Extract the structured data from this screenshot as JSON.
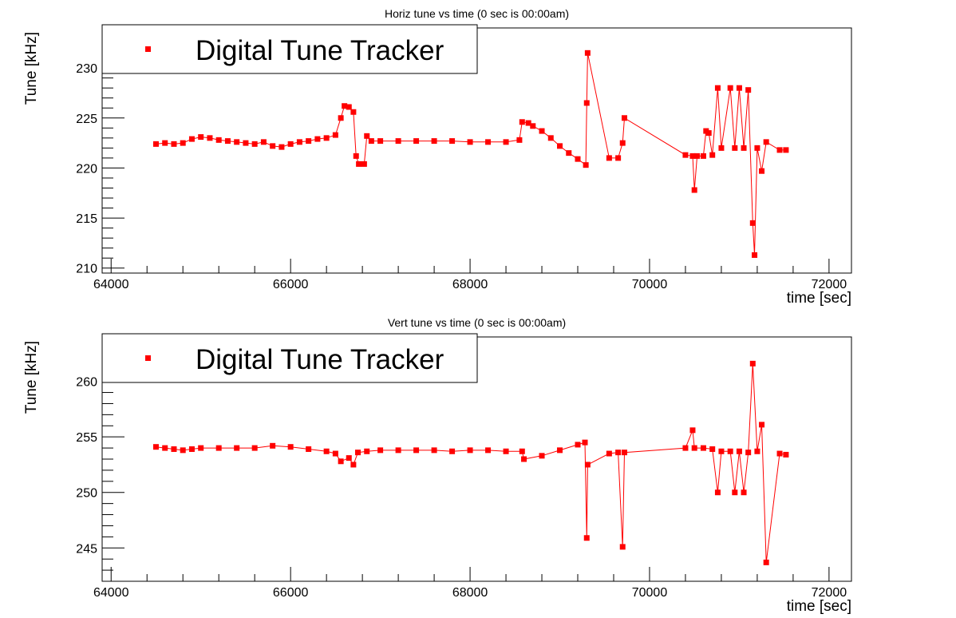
{
  "chart_data": [
    {
      "type": "scatter",
      "title": "Horiz tune vs time (0 sec is 00:00am)",
      "xlabel": "time [sec]",
      "ylabel": "Tune [kHz]",
      "xlim": [
        63900,
        72250
      ],
      "ylim": [
        209.5,
        234
      ],
      "xticks": [
        64000,
        66000,
        68000,
        70000,
        72000
      ],
      "yticks": [
        210,
        215,
        220,
        225,
        230
      ],
      "legend": {
        "label": "Digital Tune Tracker",
        "position": "top-left"
      },
      "series": [
        {
          "name": "Digital Tune Tracker",
          "color": "#ff0000",
          "points": [
            [
              64500,
              222.4
            ],
            [
              64600,
              222.5
            ],
            [
              64700,
              222.4
            ],
            [
              64800,
              222.5
            ],
            [
              64900,
              222.9
            ],
            [
              65000,
              223.1
            ],
            [
              65100,
              223.0
            ],
            [
              65200,
              222.8
            ],
            [
              65300,
              222.7
            ],
            [
              65400,
              222.6
            ],
            [
              65500,
              222.5
            ],
            [
              65600,
              222.4
            ],
            [
              65700,
              222.6
            ],
            [
              65800,
              222.2
            ],
            [
              65900,
              222.1
            ],
            [
              66000,
              222.4
            ],
            [
              66100,
              222.6
            ],
            [
              66200,
              222.7
            ],
            [
              66300,
              222.9
            ],
            [
              66400,
              223.0
            ],
            [
              66500,
              223.3
            ],
            [
              66560,
              225.0
            ],
            [
              66600,
              226.2
            ],
            [
              66650,
              226.1
            ],
            [
              66700,
              225.6
            ],
            [
              66730,
              221.2
            ],
            [
              66760,
              220.4
            ],
            [
              66820,
              220.4
            ],
            [
              66850,
              223.2
            ],
            [
              66900,
              222.7
            ],
            [
              67000,
              222.7
            ],
            [
              67200,
              222.7
            ],
            [
              67400,
              222.7
            ],
            [
              67600,
              222.7
            ],
            [
              67800,
              222.7
            ],
            [
              68000,
              222.6
            ],
            [
              68200,
              222.6
            ],
            [
              68400,
              222.6
            ],
            [
              68550,
              222.8
            ],
            [
              68580,
              224.6
            ],
            [
              68650,
              224.5
            ],
            [
              68700,
              224.2
            ],
            [
              68800,
              223.7
            ],
            [
              68900,
              223.0
            ],
            [
              69000,
              222.2
            ],
            [
              69100,
              221.5
            ],
            [
              69200,
              220.9
            ],
            [
              69290,
              220.3
            ],
            [
              69300,
              226.5
            ],
            [
              69310,
              231.5
            ],
            [
              69550,
              221.0
            ],
            [
              69650,
              221.0
            ],
            [
              69700,
              222.5
            ],
            [
              69720,
              225.0
            ],
            [
              70400,
              221.3
            ],
            [
              70480,
              221.2
            ],
            [
              70500,
              217.8
            ],
            [
              70530,
              221.2
            ],
            [
              70600,
              221.2
            ],
            [
              70630,
              223.7
            ],
            [
              70660,
              223.5
            ],
            [
              70700,
              221.3
            ],
            [
              70760,
              228.0
            ],
            [
              70800,
              222.0
            ],
            [
              70900,
              228.0
            ],
            [
              70950,
              222.0
            ],
            [
              71000,
              228.0
            ],
            [
              71050,
              222.0
            ],
            [
              71100,
              227.8
            ],
            [
              71150,
              214.5
            ],
            [
              71170,
              211.3
            ],
            [
              71200,
              222.0
            ],
            [
              71250,
              219.7
            ],
            [
              71300,
              222.6
            ],
            [
              71450,
              221.8
            ],
            [
              71520,
              221.8
            ]
          ]
        }
      ]
    },
    {
      "type": "scatter",
      "title": "Vert tune vs time (0 sec is 00:00am)",
      "xlabel": "time [sec]",
      "ylabel": "Tune [kHz]",
      "xlim": [
        63900,
        72250
      ],
      "ylim": [
        242,
        264
      ],
      "xticks": [
        64000,
        66000,
        68000,
        70000,
        72000
      ],
      "yticks": [
        245,
        250,
        255,
        260
      ],
      "legend": {
        "label": "Digital Tune Tracker",
        "position": "top-left"
      },
      "series": [
        {
          "name": "Digital Tune Tracker",
          "color": "#ff0000",
          "points": [
            [
              64500,
              254.1
            ],
            [
              64600,
              254.0
            ],
            [
              64700,
              253.9
            ],
            [
              64800,
              253.8
            ],
            [
              64900,
              253.9
            ],
            [
              65000,
              254.0
            ],
            [
              65200,
              254.0
            ],
            [
              65400,
              254.0
            ],
            [
              65600,
              254.0
            ],
            [
              65800,
              254.2
            ],
            [
              66000,
              254.1
            ],
            [
              66200,
              253.9
            ],
            [
              66400,
              253.7
            ],
            [
              66500,
              253.5
            ],
            [
              66560,
              252.8
            ],
            [
              66650,
              253.1
            ],
            [
              66700,
              252.5
            ],
            [
              66750,
              253.6
            ],
            [
              66850,
              253.7
            ],
            [
              67000,
              253.8
            ],
            [
              67200,
              253.8
            ],
            [
              67400,
              253.8
            ],
            [
              67600,
              253.8
            ],
            [
              67800,
              253.7
            ],
            [
              68000,
              253.8
            ],
            [
              68200,
              253.8
            ],
            [
              68400,
              253.7
            ],
            [
              68580,
              253.7
            ],
            [
              68600,
              253.0
            ],
            [
              68800,
              253.3
            ],
            [
              69000,
              253.8
            ],
            [
              69200,
              254.3
            ],
            [
              69280,
              254.5
            ],
            [
              69300,
              245.9
            ],
            [
              69310,
              252.5
            ],
            [
              69550,
              253.5
            ],
            [
              69650,
              253.6
            ],
            [
              69700,
              245.1
            ],
            [
              69720,
              253.6
            ],
            [
              70400,
              254.0
            ],
            [
              70480,
              255.6
            ],
            [
              70500,
              254.0
            ],
            [
              70600,
              254.0
            ],
            [
              70700,
              253.9
            ],
            [
              70760,
              250.0
            ],
            [
              70800,
              253.7
            ],
            [
              70900,
              253.7
            ],
            [
              70950,
              250.0
            ],
            [
              71000,
              253.7
            ],
            [
              71050,
              250.0
            ],
            [
              71100,
              253.6
            ],
            [
              71150,
              261.6
            ],
            [
              71200,
              253.7
            ],
            [
              71250,
              256.1
            ],
            [
              71300,
              243.7
            ],
            [
              71450,
              253.5
            ],
            [
              71520,
              253.4
            ]
          ]
        }
      ]
    }
  ]
}
